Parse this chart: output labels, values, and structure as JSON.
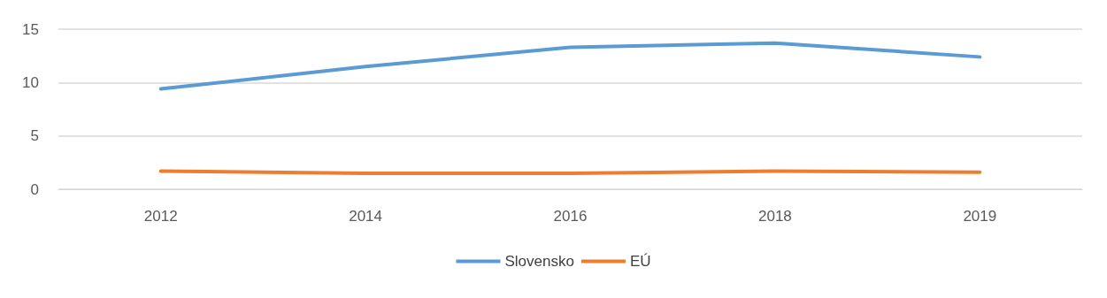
{
  "chart_data": {
    "type": "line",
    "categories": [
      "2012",
      "2014",
      "2016",
      "2018",
      "2019"
    ],
    "series": [
      {
        "name": "Slovensko",
        "color": "#5b9bd5",
        "values": [
          9.4,
          11.5,
          13.3,
          13.7,
          12.4
        ]
      },
      {
        "name": "EÚ",
        "color": "#ed7d31",
        "values": [
          1.7,
          1.5,
          1.5,
          1.7,
          1.6
        ]
      }
    ],
    "ylim": [
      0,
      15
    ],
    "yticks": [
      0,
      5,
      10,
      15
    ],
    "grid": "y",
    "legend": "bottom",
    "marker": "none",
    "line_style": "solid"
  }
}
